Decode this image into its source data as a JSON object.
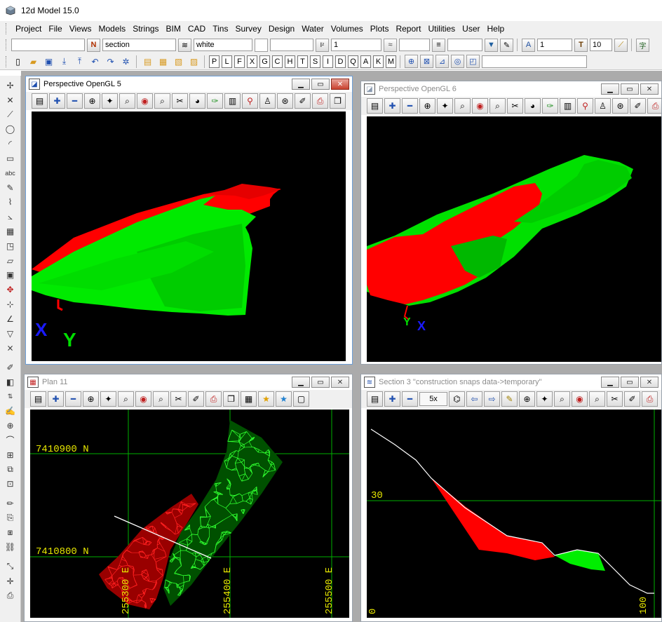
{
  "app": {
    "title": "12d Model  15.0",
    "icon": "app-cube-icon"
  },
  "menu": [
    "Project",
    "File",
    "Views",
    "Models",
    "Strings",
    "BIM",
    "CAD",
    "Tins",
    "Survey",
    "Design",
    "Water",
    "Volumes",
    "Plots",
    "Report",
    "Utilities",
    "User",
    "Help"
  ],
  "toolbar1": {
    "name_value": "",
    "model_value": "section",
    "colour_value": "white",
    "weight_value": "1",
    "text_size_value": "1",
    "text_height_value": "10",
    "icons": [
      "name-icon",
      "layer-icon",
      "colour-swatch",
      "z-value-icon",
      "linestyle-icon",
      "weight-icon",
      "dropdown-icon",
      "pen-icon",
      "text-style-icon",
      "text-icon",
      "ruler-icon",
      "chinese-text-icon"
    ]
  },
  "toolbar2": {
    "letters": [
      "P",
      "L",
      "F",
      "X",
      "G",
      "C",
      "H",
      "T",
      "S",
      "I",
      "D",
      "Q",
      "A",
      "K",
      "M"
    ],
    "command_value": ""
  },
  "windows": {
    "persp5": {
      "title": "Perspective OpenGL 5",
      "axis_x": "X",
      "axis_y": "Y"
    },
    "persp6": {
      "title": "Perspective OpenGL 6",
      "axis_x": "X",
      "axis_y": "Y"
    },
    "plan11": {
      "title": "Plan 11",
      "labels": {
        "n_top": "7410900 N",
        "n_bottom": "7410800 N",
        "e1": "255300 E",
        "e2": "255400 E",
        "e3": "255500 E"
      }
    },
    "section3": {
      "title": "Section 3 \"construction snaps data->temporary\"",
      "zoom": "5x",
      "labels": {
        "y30": "30",
        "x0": "0",
        "x100": "100"
      }
    }
  },
  "colors": {
    "cut": "#ff0000",
    "fill": "#00ee00",
    "grid": "#00c000",
    "label": "#e6e600",
    "axis_x": "#1a1aff",
    "axis_y": "#00dd00",
    "axis_z": "#ff0000"
  }
}
